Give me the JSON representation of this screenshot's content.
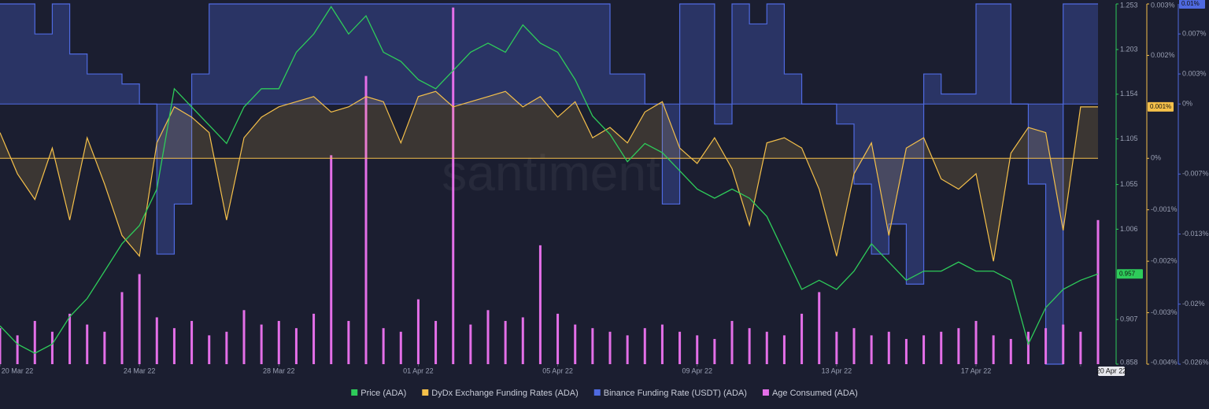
{
  "chart_data": {
    "type": "line",
    "watermark": "santiment",
    "x": [
      0,
      0.5,
      1,
      1.5,
      2,
      2.5,
      3,
      3.5,
      4,
      4.5,
      5,
      5.5,
      6,
      6.5,
      7,
      7.5,
      8,
      8.5,
      9,
      9.5,
      10,
      10.5,
      11,
      11.5,
      12,
      12.5,
      13,
      13.5,
      14,
      14.5,
      15,
      15.5,
      16,
      16.5,
      17,
      17.5,
      18,
      18.5,
      19,
      19.5,
      20,
      20.5,
      21,
      21.5,
      22,
      22.5,
      23,
      23.5,
      24,
      24.5,
      25,
      25.5,
      26,
      26.5,
      27,
      27.5,
      28,
      28.5,
      29,
      29.5,
      30,
      30.5,
      31,
      31.5
    ],
    "xlim": [
      0,
      31.5
    ],
    "xticks": [
      {
        "value": 0,
        "label": "20 Mar 22"
      },
      {
        "value": 4,
        "label": "24 Mar 22"
      },
      {
        "value": 8,
        "label": "28 Mar 22"
      },
      {
        "value": 12,
        "label": "01 Apr 22"
      },
      {
        "value": 16,
        "label": "05 Apr 22"
      },
      {
        "value": 20,
        "label": "09 Apr 22"
      },
      {
        "value": 24,
        "label": "13 Apr 22"
      },
      {
        "value": 28,
        "label": "17 Apr 22"
      },
      {
        "value": 31,
        "label": "20 Apr 22"
      }
    ],
    "series": [
      {
        "name": "Price (ADA)",
        "type": "line",
        "color": "#2ecc5a",
        "axis": "y",
        "ylim": [
          0.858,
          1.253
        ],
        "yticks": [
          0.858,
          0.907,
          1.006,
          1.055,
          1.105,
          1.154,
          1.203,
          1.253
        ],
        "values": [
          0.9,
          0.88,
          0.87,
          0.88,
          0.91,
          0.93,
          0.96,
          0.99,
          1.01,
          1.05,
          1.16,
          1.14,
          1.12,
          1.1,
          1.14,
          1.16,
          1.16,
          1.2,
          1.22,
          1.25,
          1.22,
          1.24,
          1.2,
          1.19,
          1.17,
          1.16,
          1.18,
          1.2,
          1.21,
          1.2,
          1.23,
          1.21,
          1.2,
          1.17,
          1.13,
          1.11,
          1.08,
          1.1,
          1.09,
          1.07,
          1.05,
          1.04,
          1.05,
          1.04,
          1.02,
          0.98,
          0.94,
          0.95,
          0.94,
          0.96,
          0.99,
          0.97,
          0.95,
          0.96,
          0.96,
          0.97,
          0.96,
          0.96,
          0.95,
          0.88,
          0.92,
          0.94,
          0.95,
          0.957
        ]
      },
      {
        "name": "DyDx Exchange Funding Rates (ADA)",
        "type": "area",
        "color": "#f5c04a",
        "axis": "y2",
        "ylim": [
          -0.004,
          0.003
        ],
        "yticks": [
          {
            "value": 0.003,
            "label": "0.003%"
          },
          {
            "value": 0.002,
            "label": "0.002%"
          },
          {
            "value": 0,
            "label": "0%"
          },
          {
            "value": -0.001,
            "label": "-0.001%"
          },
          {
            "value": -0.002,
            "label": "-0.002%"
          },
          {
            "value": -0.003,
            "label": "-0.003%"
          },
          {
            "value": -0.004,
            "label": "-0.004%"
          }
        ],
        "last_value_label": "0.001%",
        "values": [
          0.0005,
          -0.0003,
          -0.0008,
          0.0002,
          -0.0012,
          0.0004,
          -0.0005,
          -0.0015,
          -0.0019,
          0.0003,
          0.001,
          0.0008,
          0.0005,
          -0.0012,
          0.0004,
          0.0008,
          0.001,
          0.0011,
          0.0012,
          0.0009,
          0.001,
          0.0012,
          0.0011,
          0.0003,
          0.0012,
          0.0013,
          0.001,
          0.0011,
          0.0012,
          0.0013,
          0.001,
          0.0012,
          0.0008,
          0.0011,
          0.0004,
          0.0006,
          0.0003,
          0.0009,
          0.0011,
          0.0002,
          -0.0001,
          0.0004,
          -0.0002,
          -0.0013,
          0.0003,
          0.0004,
          0.0002,
          -0.0006,
          -0.0019,
          -0.0003,
          0.0003,
          -0.0015,
          0.0002,
          0.0004,
          -0.0004,
          -0.0006,
          -0.0003,
          -0.002,
          0.0001,
          0.0006,
          0.0005,
          -0.0014,
          0.001,
          0.001
        ]
      },
      {
        "name": "Binance Funding Rate (USDT) (ADA)",
        "type": "step-area",
        "color": "#4f6ae0",
        "axis": "y3",
        "ylim": [
          -0.026,
          0.01
        ],
        "yticks": [
          {
            "value": 0.007,
            "label": "0.007%"
          },
          {
            "value": 0.003,
            "label": "0.003%"
          },
          {
            "value": 0,
            "label": "0%"
          },
          {
            "value": -0.007,
            "label": "-0.007%"
          },
          {
            "value": -0.013,
            "label": "-0.013%"
          },
          {
            "value": -0.02,
            "label": "-0.02%"
          },
          {
            "value": -0.026,
            "label": "-0.026%"
          }
        ],
        "last_value_label": "0.01%",
        "values": [
          0.01,
          0.01,
          0.007,
          0.01,
          0.005,
          0.003,
          0.003,
          0.002,
          0,
          -0.015,
          -0.01,
          0.003,
          0.01,
          0.01,
          0.01,
          0.01,
          0.01,
          0.01,
          0.01,
          0.01,
          0.01,
          0.01,
          0.01,
          0.01,
          0.01,
          0.01,
          0.01,
          0.01,
          0.01,
          0.01,
          0.01,
          0.01,
          0.01,
          0.01,
          0.01,
          0.003,
          0.003,
          0,
          -0.01,
          0.01,
          0.01,
          -0.002,
          0.01,
          0.008,
          0.01,
          0.003,
          0,
          0,
          -0.002,
          -0.008,
          -0.015,
          -0.012,
          -0.018,
          0.003,
          0.001,
          0.001,
          0.01,
          0.01,
          0,
          -0.008,
          -0.026,
          0.01,
          0.01,
          0.01
        ]
      },
      {
        "name": "Age Consumed (ADA)",
        "type": "bar",
        "color": "#e46fe8",
        "axis": "y4",
        "ylim": [
          0,
          100
        ],
        "values": [
          10,
          8,
          12,
          9,
          14,
          11,
          9,
          20,
          25,
          13,
          10,
          12,
          8,
          9,
          15,
          11,
          12,
          10,
          14,
          58,
          12,
          80,
          10,
          9,
          18,
          12,
          99,
          11,
          15,
          12,
          13,
          33,
          14,
          11,
          10,
          9,
          8,
          10,
          11,
          9,
          8,
          7,
          12,
          10,
          9,
          8,
          14,
          20,
          9,
          10,
          8,
          9,
          7,
          8,
          9,
          10,
          12,
          8,
          7,
          9,
          10,
          11,
          9,
          40
        ]
      }
    ]
  }
}
